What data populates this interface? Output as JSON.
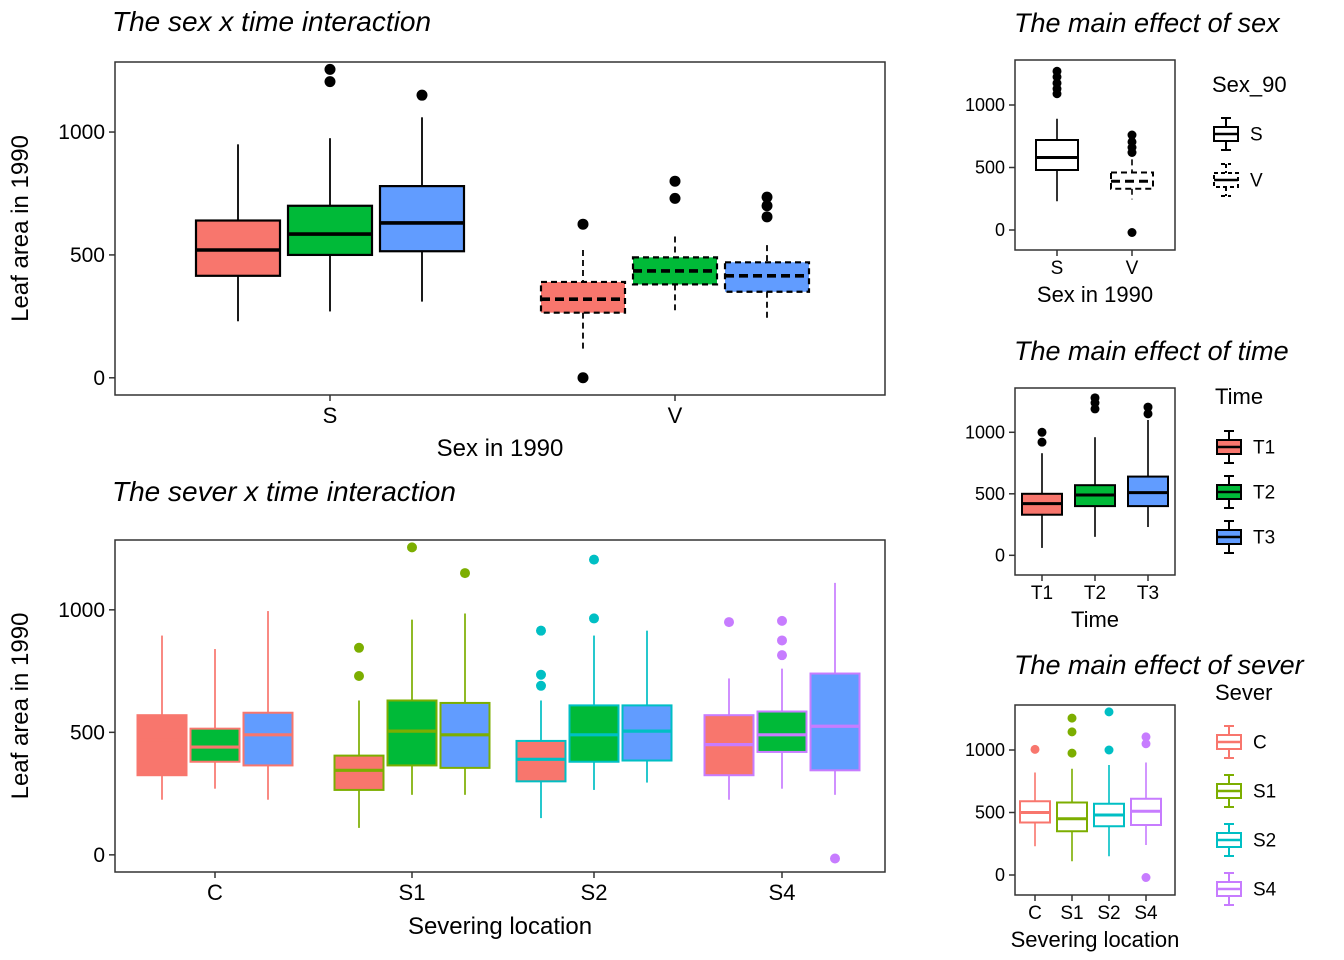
{
  "page": {
    "background": "#FFFFFF",
    "panel_border": "#333333",
    "text_color": "#000000"
  },
  "palette": {
    "time": {
      "T1": "#F8766D",
      "T2": "#00BA38",
      "T3": "#619CFF"
    },
    "sever": {
      "C": "#F8766D",
      "S1": "#7CAE00",
      "S2": "#00BFC4",
      "S4": "#C77CFF"
    }
  },
  "chart_data": [
    {
      "id": "sex_time",
      "type": "boxplot",
      "title": "The sex x time interaction",
      "xlabel": "Sex in 1990",
      "ylabel": "Leaf area in 1990",
      "yticks": [
        0,
        500,
        1000
      ],
      "ylim": [
        -70,
        1285
      ],
      "categories": [
        "S",
        "V"
      ],
      "legend": null,
      "boxes": [
        {
          "category": "S",
          "time": "T1",
          "fill": "#F8766D",
          "stroke": "#000000",
          "dashed": false,
          "whislo": 230,
          "q1": 415,
          "med": 520,
          "q3": 640,
          "whishi": 950,
          "outliers": [],
          "outlier_color": "#000000"
        },
        {
          "category": "S",
          "time": "T2",
          "fill": "#00BA38",
          "stroke": "#000000",
          "dashed": false,
          "whislo": 270,
          "q1": 500,
          "med": 585,
          "q3": 700,
          "whishi": 975,
          "outliers": [
            1205,
            1255
          ],
          "outlier_color": "#000000"
        },
        {
          "category": "S",
          "time": "T3",
          "fill": "#619CFF",
          "stroke": "#000000",
          "dashed": false,
          "whislo": 310,
          "q1": 515,
          "med": 630,
          "q3": 780,
          "whishi": 1060,
          "outliers": [
            1150
          ],
          "outlier_color": "#000000"
        },
        {
          "category": "V",
          "time": "T1",
          "fill": "#F8766D",
          "stroke": "#000000",
          "dashed": true,
          "whislo": 115,
          "q1": 265,
          "med": 320,
          "q3": 390,
          "whishi": 520,
          "outliers": [
            625,
            0
          ],
          "outlier_color": "#000000"
        },
        {
          "category": "V",
          "time": "T2",
          "fill": "#00BA38",
          "stroke": "#000000",
          "dashed": true,
          "whislo": 275,
          "q1": 380,
          "med": 435,
          "q3": 490,
          "whishi": 575,
          "outliers": [
            730,
            800
          ],
          "outlier_color": "#000000"
        },
        {
          "category": "V",
          "time": "T3",
          "fill": "#619CFF",
          "stroke": "#000000",
          "dashed": true,
          "whislo": 230,
          "q1": 350,
          "med": 415,
          "q3": 470,
          "whishi": 540,
          "outliers": [
            655,
            700,
            735
          ],
          "outlier_color": "#000000"
        }
      ]
    },
    {
      "id": "sever_time",
      "type": "boxplot",
      "title": "The sever x time interaction",
      "xlabel": "Severing location",
      "ylabel": "Leaf area in 1990",
      "yticks": [
        0,
        500,
        1000
      ],
      "ylim": [
        -70,
        1285
      ],
      "categories": [
        "C",
        "S1",
        "S2",
        "S4"
      ],
      "legend": null,
      "boxes": [
        {
          "category": "C",
          "time": "T1",
          "fill": "#F8766D",
          "stroke": "#F8766D",
          "dashed": false,
          "whislo": 225,
          "q1": 325,
          "med": 470,
          "q3": 570,
          "whishi": 895,
          "outliers": [],
          "outlier_color": "#F8766D"
        },
        {
          "category": "C",
          "time": "T2",
          "fill": "#00BA38",
          "stroke": "#F8766D",
          "dashed": false,
          "whislo": 270,
          "q1": 380,
          "med": 440,
          "q3": 515,
          "whishi": 840,
          "outliers": [],
          "outlier_color": "#F8766D"
        },
        {
          "category": "C",
          "time": "T3",
          "fill": "#619CFF",
          "stroke": "#F8766D",
          "dashed": false,
          "whislo": 225,
          "q1": 365,
          "med": 490,
          "q3": 580,
          "whishi": 995,
          "outliers": [],
          "outlier_color": "#F8766D"
        },
        {
          "category": "S1",
          "time": "T1",
          "fill": "#F8766D",
          "stroke": "#7CAE00",
          "dashed": false,
          "whislo": 110,
          "q1": 265,
          "med": 345,
          "q3": 405,
          "whishi": 630,
          "outliers": [
            730,
            845
          ],
          "outlier_color": "#7CAE00"
        },
        {
          "category": "S1",
          "time": "T2",
          "fill": "#00BA38",
          "stroke": "#7CAE00",
          "dashed": false,
          "whislo": 245,
          "q1": 365,
          "med": 505,
          "q3": 630,
          "whishi": 960,
          "outliers": [
            1255
          ],
          "outlier_color": "#7CAE00"
        },
        {
          "category": "S1",
          "time": "T3",
          "fill": "#619CFF",
          "stroke": "#7CAE00",
          "dashed": false,
          "whislo": 245,
          "q1": 355,
          "med": 490,
          "q3": 620,
          "whishi": 985,
          "outliers": [
            1150
          ],
          "outlier_color": "#7CAE00"
        },
        {
          "category": "S2",
          "time": "T1",
          "fill": "#F8766D",
          "stroke": "#00BFC4",
          "dashed": false,
          "whislo": 150,
          "q1": 300,
          "med": 390,
          "q3": 465,
          "whishi": 630,
          "outliers": [
            690,
            735,
            915
          ],
          "outlier_color": "#00BFC4"
        },
        {
          "category": "S2",
          "time": "T2",
          "fill": "#00BA38",
          "stroke": "#00BFC4",
          "dashed": false,
          "whislo": 265,
          "q1": 380,
          "med": 490,
          "q3": 610,
          "whishi": 895,
          "outliers": [
            965,
            1205
          ],
          "outlier_color": "#00BFC4"
        },
        {
          "category": "S2",
          "time": "T3",
          "fill": "#619CFF",
          "stroke": "#00BFC4",
          "dashed": false,
          "whislo": 295,
          "q1": 385,
          "med": 505,
          "q3": 610,
          "whishi": 915,
          "outliers": [],
          "outlier_color": "#00BFC4"
        },
        {
          "category": "S4",
          "time": "T1",
          "fill": "#F8766D",
          "stroke": "#C77CFF",
          "dashed": false,
          "whislo": 225,
          "q1": 325,
          "med": 450,
          "q3": 570,
          "whishi": 720,
          "outliers": [
            950
          ],
          "outlier_color": "#C77CFF"
        },
        {
          "category": "S4",
          "time": "T2",
          "fill": "#00BA38",
          "stroke": "#C77CFF",
          "dashed": false,
          "whislo": 270,
          "q1": 420,
          "med": 490,
          "q3": 585,
          "whishi": 760,
          "outliers": [
            815,
            875,
            955
          ],
          "outlier_color": "#C77CFF"
        },
        {
          "category": "S4",
          "time": "T3",
          "fill": "#619CFF",
          "stroke": "#C77CFF",
          "dashed": false,
          "whislo": 245,
          "q1": 345,
          "med": 525,
          "q3": 740,
          "whishi": 1110,
          "outliers": [
            -15
          ],
          "outlier_color": "#C77CFF"
        }
      ]
    },
    {
      "id": "sex_main",
      "type": "boxplot",
      "title": "The main effect of sex",
      "xlabel": "Sex in 1990",
      "ylabel": "",
      "yticks": [
        0,
        500,
        1000
      ],
      "ylim": [
        -160,
        1360
      ],
      "categories": [
        "S",
        "V"
      ],
      "legend": {
        "title": "Sex_90",
        "entries": [
          {
            "label": "S",
            "stroke": "#000000",
            "fill": "#FFFFFF",
            "dashed": false
          },
          {
            "label": "V",
            "stroke": "#000000",
            "fill": "#FFFFFF",
            "dashed": true
          }
        ]
      },
      "boxes": [
        {
          "category": "S",
          "fill": "#FFFFFF",
          "stroke": "#000000",
          "dashed": false,
          "whislo": 230,
          "q1": 480,
          "med": 580,
          "q3": 720,
          "whishi": 890,
          "outliers": [
            1090,
            1130,
            1175,
            1225,
            1270
          ],
          "outlier_color": "#000000"
        },
        {
          "category": "V",
          "fill": "#FFFFFF",
          "stroke": "#000000",
          "dashed": true,
          "whislo": 245,
          "q1": 330,
          "med": 390,
          "q3": 460,
          "whishi": 565,
          "outliers": [
            620,
            660,
            705,
            760,
            -20
          ],
          "outlier_color": "#000000"
        }
      ]
    },
    {
      "id": "time_main",
      "type": "boxplot",
      "title": "The main effect of time",
      "xlabel": "Time",
      "ylabel": "",
      "yticks": [
        0,
        500,
        1000
      ],
      "ylim": [
        -160,
        1360
      ],
      "categories": [
        "T1",
        "T2",
        "T3"
      ],
      "legend": {
        "title": "Time",
        "entries": [
          {
            "label": "T1",
            "stroke": "#000000",
            "fill": "#F8766D",
            "dashed": false
          },
          {
            "label": "T2",
            "stroke": "#000000",
            "fill": "#00BA38",
            "dashed": false
          },
          {
            "label": "T3",
            "stroke": "#000000",
            "fill": "#619CFF",
            "dashed": false
          }
        ]
      },
      "boxes": [
        {
          "category": "T1",
          "fill": "#F8766D",
          "stroke": "#000000",
          "dashed": false,
          "whislo": 60,
          "q1": 330,
          "med": 420,
          "q3": 500,
          "whishi": 830,
          "outliers": [
            920,
            1000
          ],
          "outlier_color": "#000000"
        },
        {
          "category": "T2",
          "fill": "#00BA38",
          "stroke": "#000000",
          "dashed": false,
          "whislo": 150,
          "q1": 400,
          "med": 490,
          "q3": 570,
          "whishi": 960,
          "outliers": [
            1190,
            1240,
            1280
          ],
          "outlier_color": "#000000"
        },
        {
          "category": "T3",
          "fill": "#619CFF",
          "stroke": "#000000",
          "dashed": false,
          "whislo": 230,
          "q1": 400,
          "med": 510,
          "q3": 640,
          "whishi": 1100,
          "outliers": [
            1150,
            1205
          ],
          "outlier_color": "#000000"
        }
      ]
    },
    {
      "id": "sever_main",
      "type": "boxplot",
      "title": "The main effect of sever",
      "xlabel": "Severing location",
      "ylabel": "",
      "yticks": [
        0,
        500,
        1000
      ],
      "ylim": [
        -160,
        1360
      ],
      "categories": [
        "C",
        "S1",
        "S2",
        "S4"
      ],
      "legend": {
        "title": "Sever",
        "entries": [
          {
            "label": "C",
            "stroke": "#F8766D",
            "fill": "#FFFFFF",
            "dashed": false
          },
          {
            "label": "S1",
            "stroke": "#7CAE00",
            "fill": "#FFFFFF",
            "dashed": false
          },
          {
            "label": "S2",
            "stroke": "#00BFC4",
            "fill": "#FFFFFF",
            "dashed": false
          },
          {
            "label": "S4",
            "stroke": "#C77CFF",
            "fill": "#FFFFFF",
            "dashed": false
          }
        ]
      },
      "boxes": [
        {
          "category": "C",
          "fill": "#FFFFFF",
          "stroke": "#F8766D",
          "dashed": false,
          "whislo": 230,
          "q1": 420,
          "med": 500,
          "q3": 590,
          "whishi": 820,
          "outliers": [
            1005
          ],
          "outlier_color": "#F8766D"
        },
        {
          "category": "S1",
          "fill": "#FFFFFF",
          "stroke": "#7CAE00",
          "dashed": false,
          "whislo": 110,
          "q1": 350,
          "med": 450,
          "q3": 580,
          "whishi": 850,
          "outliers": [
            975,
            1145,
            1255
          ],
          "outlier_color": "#7CAE00"
        },
        {
          "category": "S2",
          "fill": "#FFFFFF",
          "stroke": "#00BFC4",
          "dashed": false,
          "whislo": 150,
          "q1": 390,
          "med": 480,
          "q3": 570,
          "whishi": 880,
          "outliers": [
            1000,
            1305
          ],
          "outlier_color": "#00BFC4"
        },
        {
          "category": "S4",
          "fill": "#FFFFFF",
          "stroke": "#C77CFF",
          "dashed": false,
          "whislo": 240,
          "q1": 400,
          "med": 510,
          "q3": 610,
          "whishi": 900,
          "outliers": [
            1050,
            1105,
            -20
          ],
          "outlier_color": "#C77CFF"
        }
      ]
    }
  ]
}
